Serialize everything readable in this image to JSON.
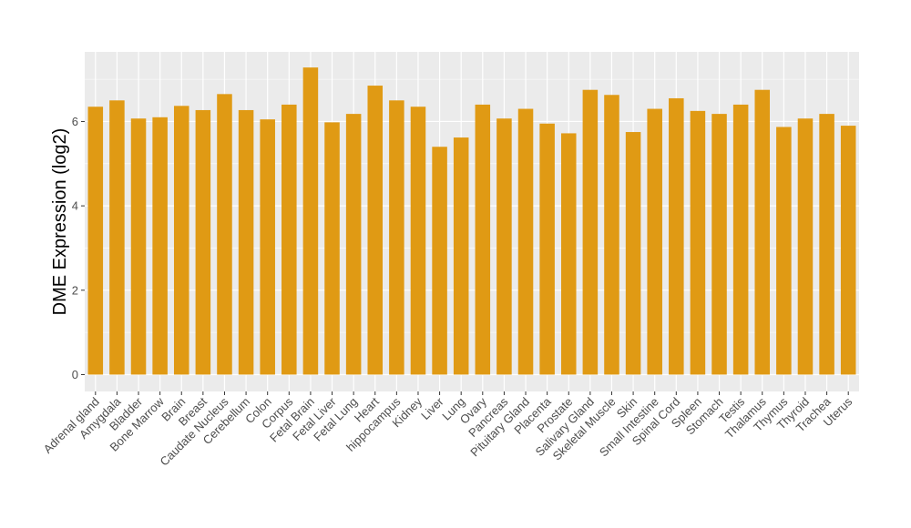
{
  "chart_data": {
    "type": "bar",
    "ylabel": "DME Expression (log2)",
    "xlabel": "",
    "title": "",
    "ylim": [
      -0.4,
      7.65
    ],
    "yticks": [
      0,
      2,
      4,
      6
    ],
    "grid": true,
    "legend": "none",
    "bar_color": "#E09A14",
    "panel_color": "#EBEBEB",
    "grid_color": "#FFFFFF",
    "categories": [
      "Adrenal gland",
      "Amygdala",
      "Bladder",
      "Bone Marrow",
      "Brain",
      "Breast",
      "Caudate Nucleus",
      "Cerebellum",
      "Colon",
      "Corpus",
      "Fetal Brain",
      "Fetal Liver",
      "Fetal Lung",
      "Heart",
      "hippocampus",
      "Kidney",
      "Liver",
      "Lung",
      "Ovary",
      "Pancreas",
      "Pituitary Gland",
      "Placenta",
      "Prostate",
      "Salivary Gland",
      "Skeletal Muscle",
      "Skin",
      "Small Intestine",
      "Spinal Cord",
      "Spleen",
      "Stomach",
      "Testis",
      "Thalamus",
      "Thymus",
      "Thyroid",
      "Trachea",
      "Uterus"
    ],
    "values": [
      6.35,
      6.5,
      6.07,
      6.1,
      6.37,
      6.27,
      6.65,
      6.27,
      6.05,
      6.4,
      7.28,
      5.98,
      6.18,
      6.85,
      6.5,
      6.35,
      5.4,
      5.62,
      6.4,
      6.07,
      6.3,
      5.95,
      5.72,
      6.75,
      6.63,
      5.75,
      6.3,
      6.55,
      6.25,
      6.18,
      6.4,
      6.75,
      5.87,
      6.07,
      6.18,
      5.9
    ]
  }
}
